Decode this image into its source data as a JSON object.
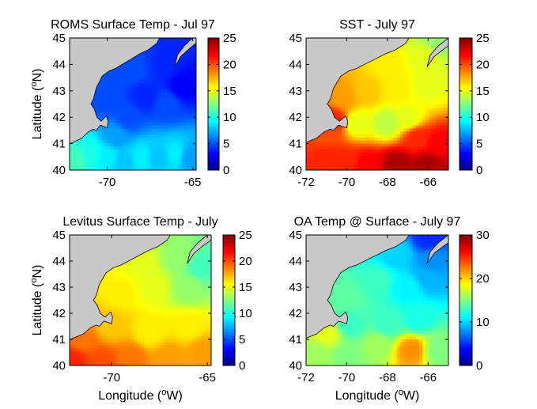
{
  "colors": {
    "land": "#c8c8c8",
    "frame": "#000000"
  },
  "chart_data": [
    {
      "type": "heatmap",
      "title": "ROMS Surface Temp - Jul 97",
      "ylabel": "Latitude (",
      "ylabel_sup": "o",
      "ylabel_end": "N)",
      "xlabel": "",
      "xlim": [
        -72.2,
        -64.8
      ],
      "ylim": [
        40,
        45
      ],
      "xticks": [
        -70,
        -65
      ],
      "yticks": [
        40,
        41,
        42,
        43,
        44,
        45
      ],
      "clim": [
        0,
        25
      ],
      "cticks": [
        0,
        5,
        10,
        15,
        20,
        25
      ],
      "field": [
        {
          "lon": -71.8,
          "lat": 40.4,
          "value": 11
        },
        {
          "lon": -71.0,
          "lat": 40.6,
          "value": 10
        },
        {
          "lon": -70.0,
          "lat": 40.5,
          "value": 9
        },
        {
          "lon": -69.5,
          "lat": 41.3,
          "value": 7
        },
        {
          "lon": -69.0,
          "lat": 40.3,
          "value": 8
        },
        {
          "lon": -68.0,
          "lat": 40.5,
          "value": 9
        },
        {
          "lon": -67.0,
          "lat": 40.5,
          "value": 8
        },
        {
          "lon": -66.0,
          "lat": 40.6,
          "value": 9
        },
        {
          "lon": -65.2,
          "lat": 40.5,
          "value": 7
        },
        {
          "lon": -68.8,
          "lat": 42.0,
          "value": 5
        },
        {
          "lon": -67.8,
          "lat": 42.8,
          "value": 4
        },
        {
          "lon": -66.5,
          "lat": 42.5,
          "value": 5
        },
        {
          "lon": -65.6,
          "lat": 43.2,
          "value": 3
        },
        {
          "lon": -66.5,
          "lat": 44.0,
          "value": 4
        },
        {
          "lon": -68.5,
          "lat": 43.8,
          "value": 5
        },
        {
          "lon": -70.0,
          "lat": 42.6,
          "value": 5
        }
      ]
    },
    {
      "type": "heatmap",
      "title": "SST - July 97",
      "xlabel": "",
      "ylabel": "",
      "xlim": [
        -72,
        -65
      ],
      "ylim": [
        40,
        45
      ],
      "xticks": [
        -72,
        -70,
        -68,
        -66
      ],
      "yticks": [
        40,
        41,
        42,
        43,
        44,
        45
      ],
      "clim": [
        0,
        25
      ],
      "cticks": [
        0,
        5,
        10,
        15,
        20,
        25
      ],
      "field": [
        {
          "lon": -71.0,
          "lat": 40.5,
          "value": 21
        },
        {
          "lon": -70.0,
          "lat": 40.3,
          "value": 21
        },
        {
          "lon": -69.0,
          "lat": 40.2,
          "value": 22
        },
        {
          "lon": -67.5,
          "lat": 40.2,
          "value": 24
        },
        {
          "lon": -66.0,
          "lat": 40.2,
          "value": 24
        },
        {
          "lon": -65.5,
          "lat": 41.0,
          "value": 22
        },
        {
          "lon": -66.5,
          "lat": 41.2,
          "value": 21
        },
        {
          "lon": -71.0,
          "lat": 41.4,
          "value": 20
        },
        {
          "lon": -69.5,
          "lat": 41.8,
          "value": 15
        },
        {
          "lon": -68.0,
          "lat": 41.8,
          "value": 14
        },
        {
          "lon": -67.0,
          "lat": 42.0,
          "value": 15
        },
        {
          "lon": -70.2,
          "lat": 42.8,
          "value": 18
        },
        {
          "lon": -69.0,
          "lat": 43.0,
          "value": 17
        },
        {
          "lon": -67.5,
          "lat": 43.0,
          "value": 16
        },
        {
          "lon": -66.0,
          "lat": 43.2,
          "value": 15
        },
        {
          "lon": -68.0,
          "lat": 43.9,
          "value": 16
        },
        {
          "lon": -66.0,
          "lat": 44.3,
          "value": 15
        },
        {
          "lon": -65.5,
          "lat": 44.8,
          "value": 13
        },
        {
          "lon": -70.6,
          "lat": 41.9,
          "value": 21
        }
      ]
    },
    {
      "type": "heatmap",
      "title": "Levitus Surface Temp - July",
      "ylabel": "Latitude (",
      "ylabel_sup": "o",
      "ylabel_end": "N)",
      "xlabel": "Longitude (",
      "xlabel_sup": "o",
      "xlabel_end": "W)",
      "xlim": [
        -72.2,
        -64.8
      ],
      "ylim": [
        40,
        45
      ],
      "xticks": [
        -70,
        -65
      ],
      "yticks": [
        40,
        41,
        42,
        43,
        44,
        45
      ],
      "clim": [
        0,
        25
      ],
      "cticks": [
        0,
        5,
        10,
        15,
        20,
        25
      ],
      "field": [
        {
          "lon": -72.0,
          "lat": 40.2,
          "value": 21
        },
        {
          "lon": -70.5,
          "lat": 40.2,
          "value": 20
        },
        {
          "lon": -69.0,
          "lat": 40.3,
          "value": 19
        },
        {
          "lon": -67.0,
          "lat": 40.3,
          "value": 18
        },
        {
          "lon": -65.2,
          "lat": 40.5,
          "value": 18
        },
        {
          "lon": -71.5,
          "lat": 41.0,
          "value": 19
        },
        {
          "lon": -70.0,
          "lat": 41.5,
          "value": 17
        },
        {
          "lon": -68.0,
          "lat": 41.3,
          "value": 16
        },
        {
          "lon": -66.0,
          "lat": 41.5,
          "value": 16
        },
        {
          "lon": -69.5,
          "lat": 42.8,
          "value": 16
        },
        {
          "lon": -67.8,
          "lat": 43.0,
          "value": 15
        },
        {
          "lon": -66.0,
          "lat": 43.0,
          "value": 13
        },
        {
          "lon": -68.5,
          "lat": 44.0,
          "value": 15
        },
        {
          "lon": -66.5,
          "lat": 44.2,
          "value": 13
        },
        {
          "lon": -65.3,
          "lat": 43.8,
          "value": 11
        }
      ]
    },
    {
      "type": "heatmap",
      "title": "OA Temp @ Surface - July 97",
      "xlabel": "Longitude (",
      "xlabel_sup": "o",
      "xlabel_end": "W)",
      "ylabel": "",
      "xlim": [
        -72,
        -65
      ],
      "ylim": [
        40,
        45
      ],
      "xticks": [
        -72,
        -70,
        -68,
        -66
      ],
      "yticks": [
        40,
        41,
        42,
        43,
        44,
        45
      ],
      "clim": [
        0,
        30
      ],
      "cticks": [
        0,
        10,
        20,
        30
      ],
      "field": [
        {
          "lon": -71.5,
          "lat": 40.5,
          "value": 16
        },
        {
          "lon": -70.0,
          "lat": 40.4,
          "value": 15
        },
        {
          "lon": -68.5,
          "lat": 40.8,
          "value": 16
        },
        {
          "lon": -66.8,
          "lat": 40.6,
          "value": 22
        },
        {
          "lon": -65.5,
          "lat": 40.6,
          "value": 15
        },
        {
          "lon": -69.8,
          "lat": 41.6,
          "value": 13
        },
        {
          "lon": -68.0,
          "lat": 41.6,
          "value": 13
        },
        {
          "lon": -66.5,
          "lat": 41.8,
          "value": 12
        },
        {
          "lon": -70.0,
          "lat": 42.6,
          "value": 14
        },
        {
          "lon": -68.5,
          "lat": 43.2,
          "value": 13
        },
        {
          "lon": -67.0,
          "lat": 43.0,
          "value": 11
        },
        {
          "lon": -66.0,
          "lat": 43.4,
          "value": 9
        },
        {
          "lon": -67.5,
          "lat": 44.3,
          "value": 10
        },
        {
          "lon": -66.0,
          "lat": 44.9,
          "value": 5
        },
        {
          "lon": -65.8,
          "lat": 44.0,
          "value": 8
        },
        {
          "lon": -71.0,
          "lat": 41.2,
          "value": 18
        }
      ]
    }
  ]
}
